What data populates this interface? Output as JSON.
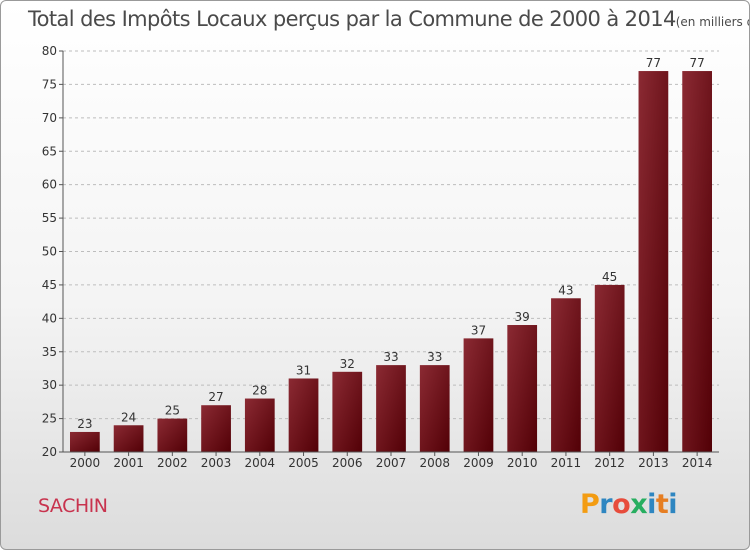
{
  "header": {
    "title": "Total des Impôts Locaux perçus par la Commune de 2000 à 2014",
    "unit": "(en milliers d'€)"
  },
  "footer": {
    "commune": "SACHIN",
    "brand": "Proxiti",
    "brand_colors": [
      "#f39c12",
      "#2e86c1",
      "#e74c3c",
      "#27ae60",
      "#2e86c1",
      "#e67e22",
      "#2e86c1"
    ]
  },
  "colors": {
    "bar_light": "#8b2a33",
    "bar_dark": "#520006",
    "axis": "#555555",
    "grid": "#bdbdbd",
    "label": "#333333"
  },
  "chart_data": {
    "type": "bar",
    "categories": [
      "2000",
      "2001",
      "2002",
      "2003",
      "2004",
      "2005",
      "2006",
      "2007",
      "2008",
      "2009",
      "2010",
      "2011",
      "2012",
      "2013",
      "2014"
    ],
    "values": [
      23,
      24,
      25,
      27,
      28,
      31,
      32,
      33,
      33,
      37,
      39,
      43,
      45,
      77,
      77
    ],
    "data_labels": [
      "23",
      "24",
      "25",
      "27",
      "28",
      "31",
      "32",
      "33",
      "33",
      "37",
      "39",
      "43",
      "45",
      "77",
      "77"
    ],
    "ylim": [
      20,
      80
    ],
    "yticks": [
      20,
      25,
      30,
      35,
      40,
      45,
      50,
      55,
      60,
      65,
      70,
      75,
      80
    ],
    "grid": true,
    "title": "Total des Impôts Locaux perçus par la Commune de 2000 à 2014",
    "xlabel": "",
    "ylabel": ""
  }
}
